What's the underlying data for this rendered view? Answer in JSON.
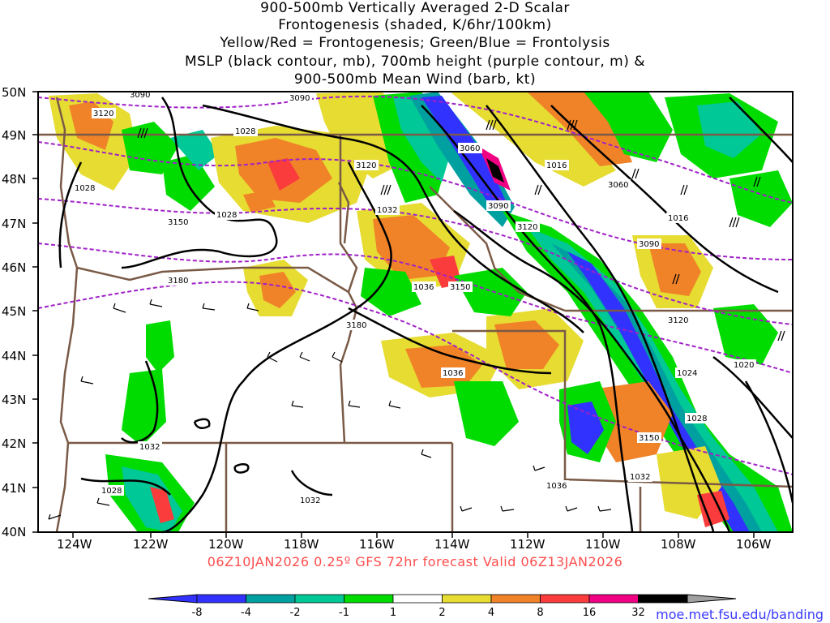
{
  "title_lines": [
    "900-500mb Vertically Averaged 2-D Scalar",
    "Frontogenesis (shaded, K/6hr/100km)",
    "Yellow/Red = Frontogenesis;  Green/Blue = Frontolysis",
    "MSLP (black contour, mb), 700mb height (purple contour, m) &",
    "900-500mb Mean Wind (barb, kt)"
  ],
  "lat_labels": [
    "50N",
    "49N",
    "48N",
    "47N",
    "46N",
    "45N",
    "44N",
    "43N",
    "42N",
    "41N",
    "40N"
  ],
  "lon_labels": [
    "124W",
    "122W",
    "120W",
    "118W",
    "116W",
    "114W",
    "112W",
    "110W",
    "108W",
    "106W"
  ],
  "footer": "06Z10JAN2026 0.25º GFS 72hr forecast Valid 06Z13JAN2026",
  "colorbar": {
    "labels": [
      "-8",
      "-4",
      "-2",
      "-1",
      "1",
      "2",
      "4",
      "8",
      "16",
      "32"
    ],
    "colors": [
      "#3232ff",
      "#00a0a0",
      "#00c896",
      "#00dc00",
      "#ffffff",
      "#e6dc32",
      "#f08228",
      "#fa3c3c",
      "#f00082",
      "#000000"
    ],
    "end_low": "#3232ff",
    "end_high": "#a0a0a0"
  },
  "credit": "moe.met.fsu.edu/banding",
  "mslp_labels": [
    "1028",
    "1028",
    "1028",
    "1032",
    "1036",
    "1036",
    "1032",
    "1028",
    "1032",
    "1016",
    "1016",
    "1024",
    "1020",
    "1028",
    "1032",
    "1036"
  ],
  "height_labels": [
    "3090",
    "3120",
    "3090",
    "3060",
    "3120",
    "3090",
    "3060",
    "3150",
    "3120",
    "3090",
    "3180",
    "3150",
    "3180",
    "3120",
    "3150"
  ]
}
